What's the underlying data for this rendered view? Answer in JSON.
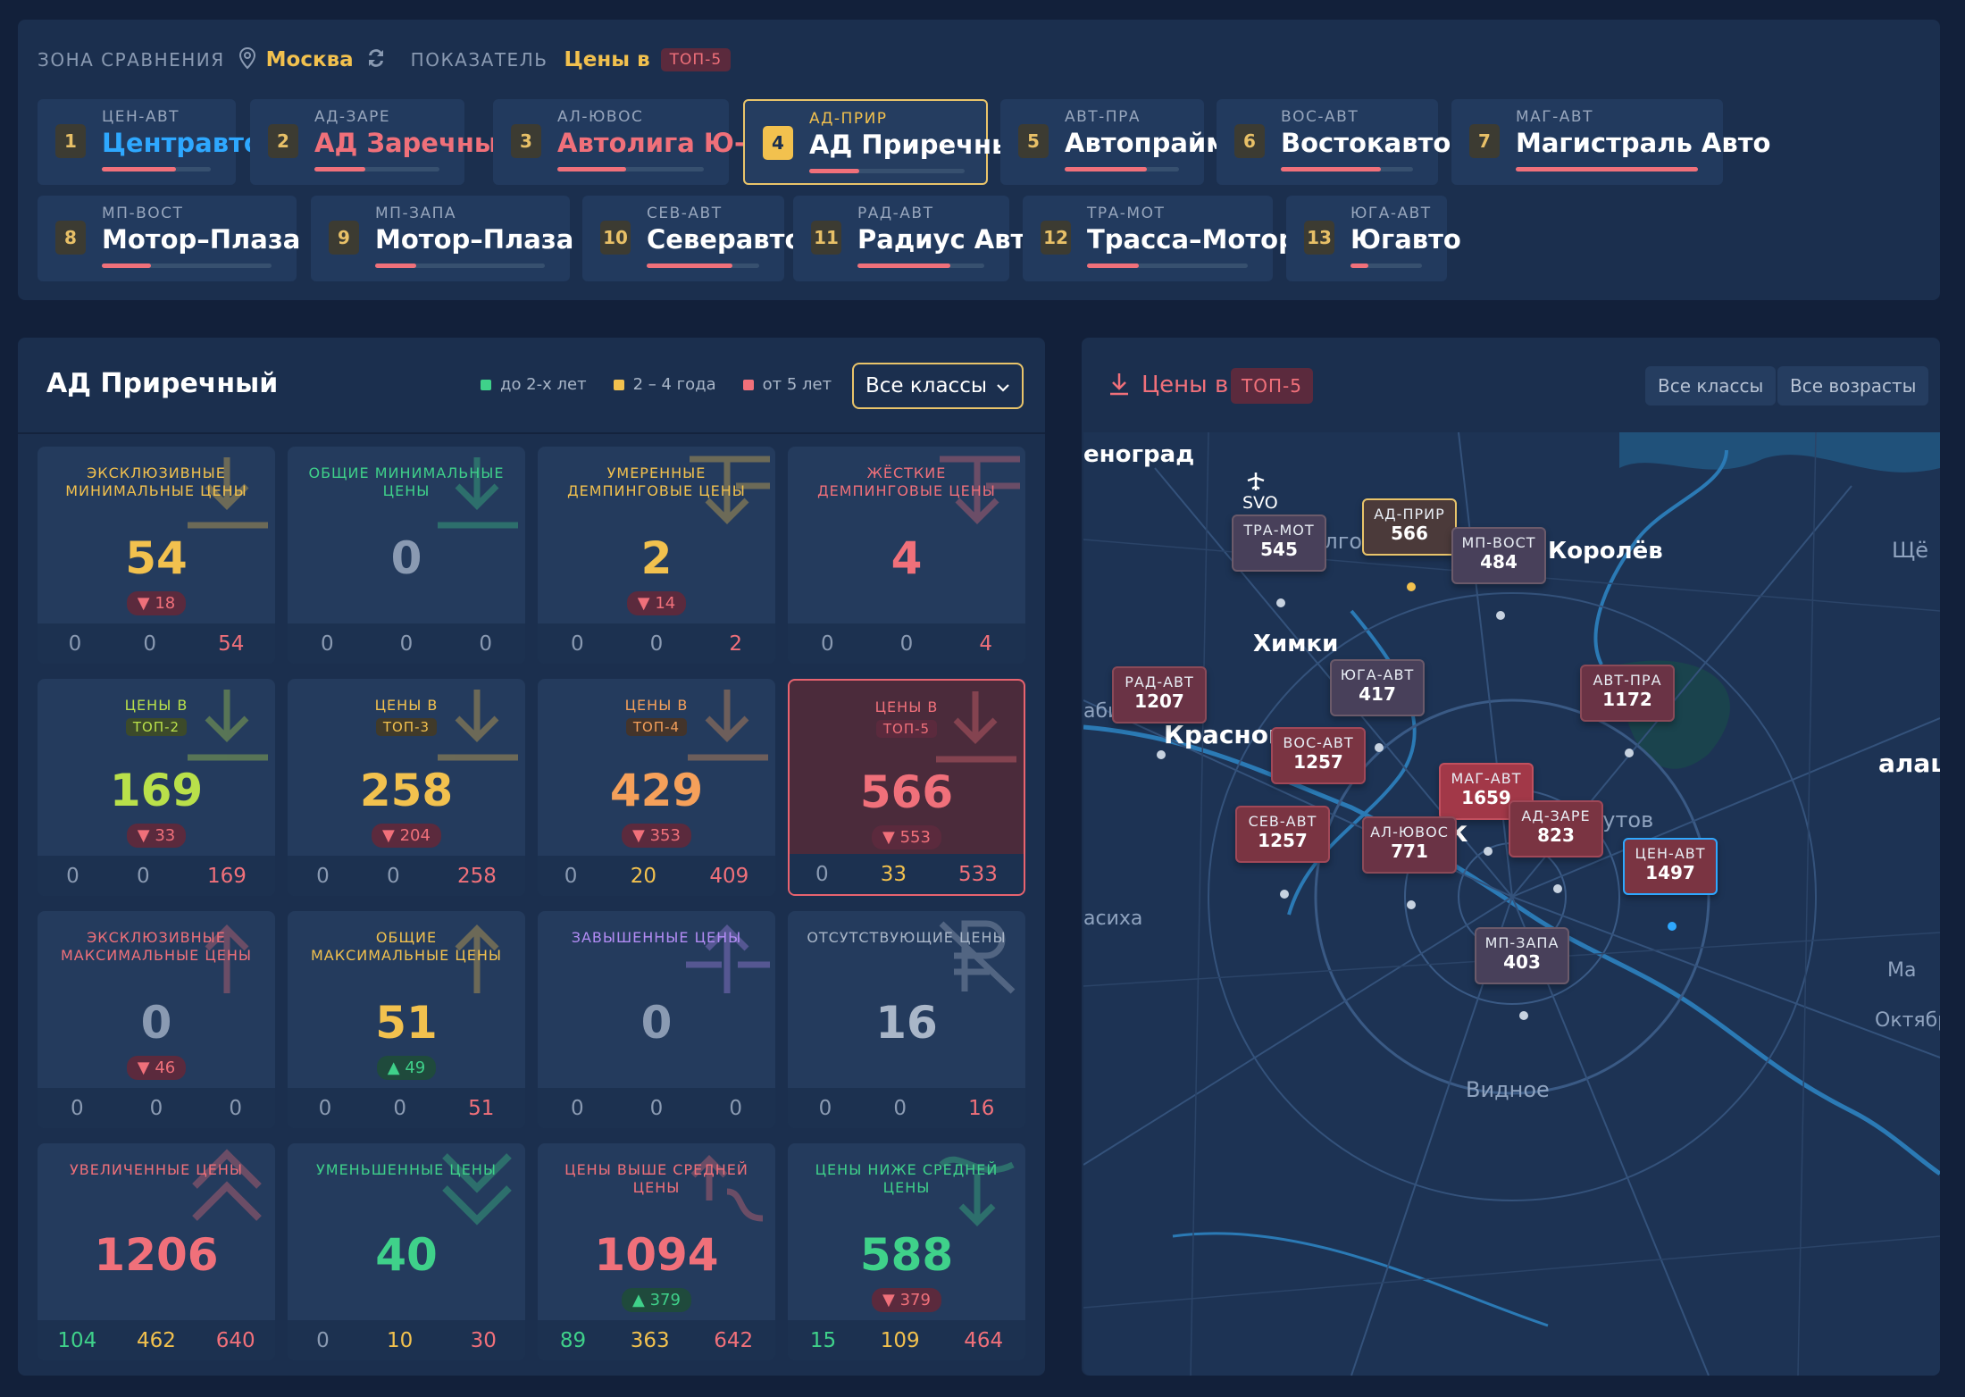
{
  "top": {
    "zone_label": "ЗОНА СРАВНЕНИЯ",
    "zone_value": "Москва",
    "metric_label": "ПОКАЗАТЕЛЬ",
    "metric_value": "Цены в",
    "metric_badge": "ТОП-5"
  },
  "competitors": [
    {
      "num": "1",
      "code": "ЦЕН-АВТ",
      "name": "Центравто",
      "share": 0.68
    },
    {
      "num": "2",
      "code": "АД-ЗАРЕ",
      "name": "АД Заречный",
      "share": 0.41
    },
    {
      "num": "3",
      "code": "АЛ-ЮВОС",
      "name": "Автолига Ю-В",
      "share": 0.47
    },
    {
      "num": "4",
      "code": "АД-ПРИР",
      "name": "АД Приречный",
      "share": 0.32
    },
    {
      "num": "5",
      "code": "АВТ-ПРА",
      "name": "Автопрайм",
      "share": 0.72
    },
    {
      "num": "6",
      "code": "ВОС-АВТ",
      "name": "Востокавто+",
      "share": 0.76
    },
    {
      "num": "7",
      "code": "МАГ-АВТ",
      "name": "Магистраль Авто",
      "share": 1.0
    },
    {
      "num": "8",
      "code": "МП-ВОСТ",
      "name": "Мотор–Плаза В.",
      "share": 0.29
    },
    {
      "num": "9",
      "code": "МП-ЗАПА",
      "name": "Мотор–Плаза З.",
      "share": 0.24
    },
    {
      "num": "10",
      "code": "СЕВ-АВТ",
      "name": "Северавто",
      "share": 0.76
    },
    {
      "num": "11",
      "code": "РАД-АВТ",
      "name": "Радиус Авто",
      "share": 0.73
    },
    {
      "num": "12",
      "code": "ТРА-МОТ",
      "name": "Трасса–Моторс",
      "share": 0.32
    },
    {
      "num": "13",
      "code": "ЮГА-АВТ",
      "name": "Югавто",
      "share": 0.25
    }
  ],
  "left_panel": {
    "title": "АД Приречный",
    "legend": [
      "до 2-х лет",
      "2 – 4 года",
      "от 5 лет"
    ],
    "class_select": "Все классы",
    "cards": [
      {
        "title": "Эксклюзивные минимальные цены",
        "value": "54",
        "change": "▼ 18",
        "foot": [
          "0",
          "0",
          "54"
        ]
      },
      {
        "title": "Общие минимальные цены",
        "value": "0",
        "change": "",
        "foot": [
          "0",
          "0",
          "0"
        ]
      },
      {
        "title": "Умеренные демпинговые цены",
        "value": "2",
        "change": "▼ 14",
        "foot": [
          "0",
          "0",
          "2"
        ]
      },
      {
        "title": "Жёсткие демпинговые цены",
        "value": "4",
        "change": "",
        "foot": [
          "0",
          "0",
          "4"
        ]
      },
      {
        "title": "Цены в",
        "pill": "ТОП-2",
        "value": "169",
        "change": "▼ 33",
        "foot": [
          "0",
          "0",
          "169"
        ]
      },
      {
        "title": "Цены в",
        "pill": "ТОП-3",
        "value": "258",
        "change": "▼ 204",
        "foot": [
          "0",
          "0",
          "258"
        ]
      },
      {
        "title": "Цены в",
        "pill": "ТОП-4",
        "value": "429",
        "change": "▼ 353",
        "foot": [
          "0",
          "20",
          "409"
        ]
      },
      {
        "title": "Цены в",
        "pill": "ТОП-5",
        "value": "566",
        "change": "▼ 553",
        "foot": [
          "0",
          "33",
          "533"
        ]
      },
      {
        "title": "Эксклюзивные максимальные цены",
        "value": "0",
        "change": "▼ 46",
        "foot": [
          "0",
          "0",
          "0"
        ]
      },
      {
        "title": "Общие максимальные цены",
        "value": "51",
        "change": "▲ 49",
        "foot": [
          "0",
          "0",
          "51"
        ]
      },
      {
        "title": "Завышенные цены",
        "value": "0",
        "change": "",
        "foot": [
          "0",
          "0",
          "0"
        ]
      },
      {
        "title": "Отсутствующие цены",
        "value": "16",
        "change": "",
        "foot": [
          "0",
          "0",
          "16"
        ]
      },
      {
        "title": "Увеличенные цены",
        "value": "1206",
        "change": "",
        "foot": [
          "104",
          "462",
          "640"
        ]
      },
      {
        "title": "Уменьшенные цены",
        "value": "40",
        "change": "",
        "foot": [
          "0",
          "10",
          "30"
        ]
      },
      {
        "title": "Цены выше средней цены",
        "value": "1094",
        "change": "▲ 379",
        "foot": [
          "89",
          "363",
          "642"
        ]
      },
      {
        "title": "Цены ниже средней цены",
        "value": "588",
        "change": "▼ 379",
        "foot": [
          "15",
          "109",
          "464"
        ]
      }
    ]
  },
  "right_panel": {
    "title": "Цены в",
    "badge": "ТОП-5",
    "btn_classes": "Все классы",
    "btn_ages": "Все возрасты",
    "map_labels": [
      "еноград",
      "SVO",
      "Долгопру",
      "Королёв",
      "Щё",
      "Химки",
      "абино",
      "Красногорск",
      "алаш",
      "Реутов",
      "Моск",
      "асиха",
      "Ма",
      "Октябр",
      "Видное"
    ],
    "markers": [
      {
        "code": "ТРА-МОТ",
        "value": "545"
      },
      {
        "code": "АД-ПРИР",
        "value": "566"
      },
      {
        "code": "МП-ВОСТ",
        "value": "484"
      },
      {
        "code": "РАД-АВТ",
        "value": "1207"
      },
      {
        "code": "ЮГА-АВТ",
        "value": "417"
      },
      {
        "code": "АВТ-ПРА",
        "value": "1172"
      },
      {
        "code": "ВОС-АВТ",
        "value": "1257"
      },
      {
        "code": "МАГ-АВТ",
        "value": "1659"
      },
      {
        "code": "СЕВ-АВТ",
        "value": "1257"
      },
      {
        "code": "АЛ-ЮВОС",
        "value": "771"
      },
      {
        "code": "АД-ЗАРЕ",
        "value": "823"
      },
      {
        "code": "ЦЕН-АВТ",
        "value": "1497"
      },
      {
        "code": "МП-ЗАПА",
        "value": "403"
      }
    ]
  },
  "colors": {
    "accent": "#f2c14e",
    "red": "#f0707a",
    "green": "#3fd18a",
    "orange": "#f5a05a",
    "lime": "#b9e04a",
    "blue": "#2ea8ff",
    "purple": "#b38cf5",
    "grey": "#8a9ab2"
  }
}
